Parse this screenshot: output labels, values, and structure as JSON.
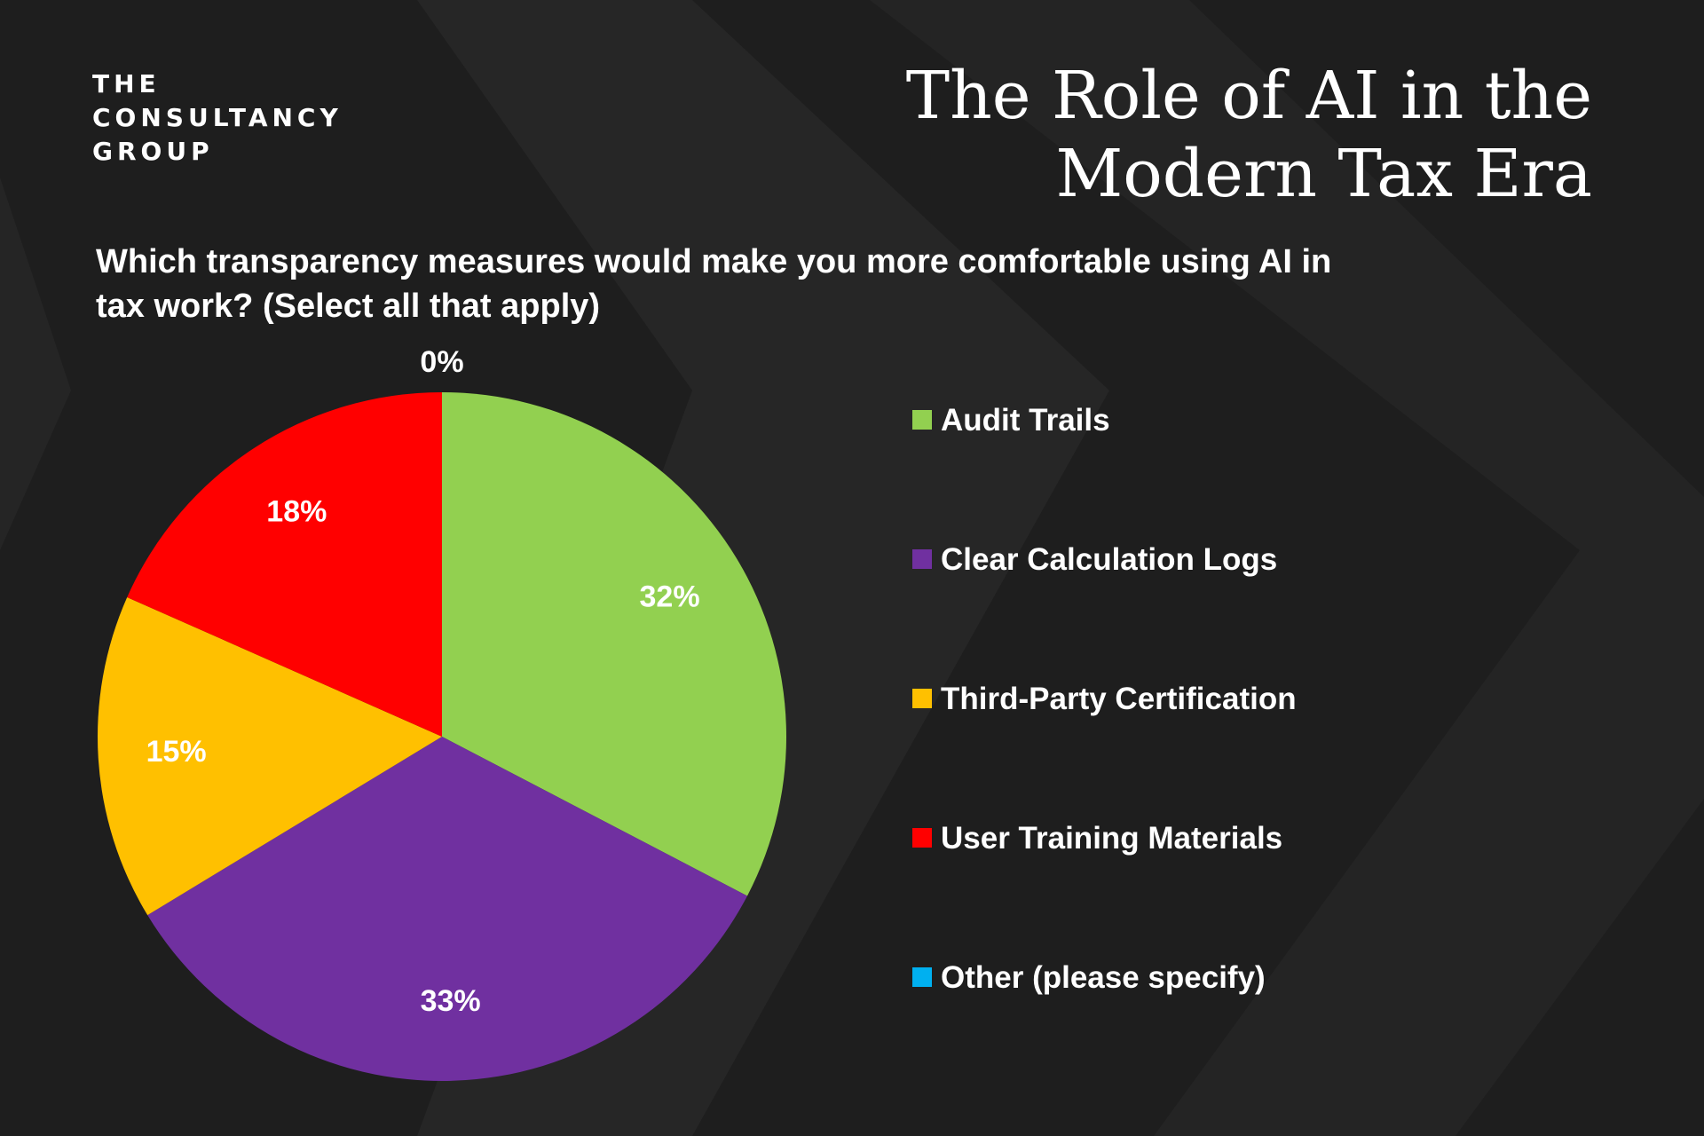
{
  "brand": {
    "lines": [
      "THE",
      "CONSULTANCY",
      "GROUP"
    ]
  },
  "title": {
    "lines": [
      "The Role of AI in the",
      "Modern Tax Era"
    ]
  },
  "question": {
    "lines": [
      "Which transparency measures would make you more comfortable using AI in",
      "tax work? (Select all that apply)"
    ]
  },
  "colors": {
    "background": "#1e1e1e",
    "text": "#ffffff"
  },
  "chart_data": {
    "type": "pie",
    "title": "Which transparency measures would make you more comfortable using AI in tax work? (Select all that apply)",
    "categories": [
      "Audit Trails",
      "Clear Calculation Logs",
      "Third-Party Certification",
      "User Training Materials",
      "Other (please specify)"
    ],
    "values": [
      32,
      33,
      15,
      18,
      0
    ],
    "data_labels": [
      "32%",
      "33%",
      "15%",
      "18%",
      "0%"
    ],
    "colors": [
      "#92d050",
      "#7030a0",
      "#ffc000",
      "#ff0000",
      "#00b0f0"
    ],
    "legend": "right"
  }
}
